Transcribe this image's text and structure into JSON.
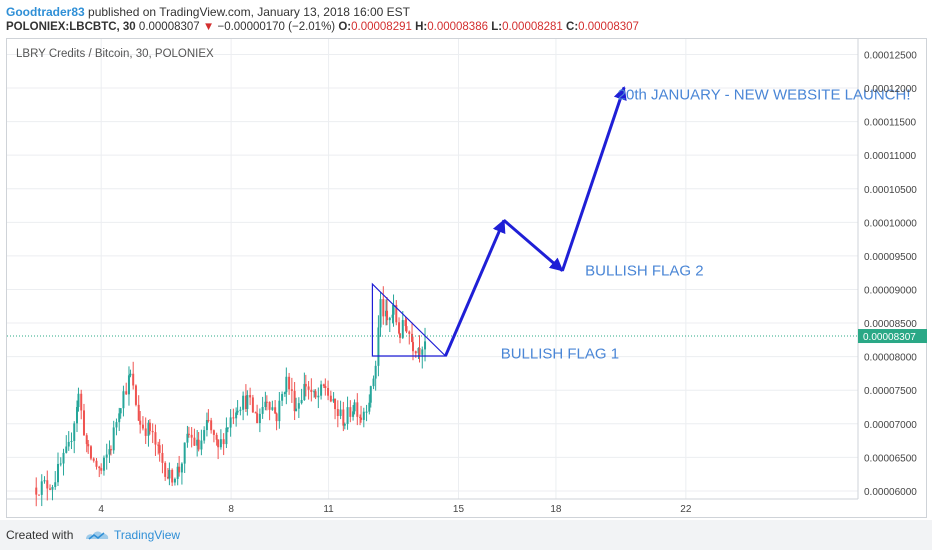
{
  "header": {
    "author": "Goodtrader83",
    "published": " published on TradingView.com, January 13, 2018 16:00 EST",
    "symbol": "POLONIEX:LBCBTC, 30",
    "last": "0.00008307",
    "change": "−0.00000170 (−2.01%)",
    "o_label": "O:",
    "o_val": "0.00008291",
    "h_label": "H:",
    "h_val": "0.00008386",
    "l_label": "L:",
    "l_val": "0.00008281",
    "c_label": "C:",
    "c_val": "0.00008307"
  },
  "footer": {
    "created_with": "Created with",
    "brand": "TradingView"
  },
  "chart_data": {
    "type": "candlestick",
    "title": "LBRY Credits / Bitcoin, 30, POLONIEX",
    "x": {
      "tick_labels": [
        "4",
        "8",
        "11",
        "15",
        "18",
        "22"
      ],
      "tick_values": [
        4,
        8,
        11,
        15,
        18,
        22
      ],
      "range": [
        1.1,
        27.3
      ]
    },
    "y": {
      "tick_labels": [
        "0.00012500",
        "0.00012000",
        "0.00011500",
        "0.00011000",
        "0.00010500",
        "0.00010000",
        "0.00009500",
        "0.00009000",
        "0.00008500",
        "0.00008000",
        "0.00007500",
        "0.00007000",
        "0.00006500",
        "0.00006000"
      ],
      "range": [
        5.88e-05,
        0.0001273
      ]
    },
    "last_price": "0.00008307",
    "last_price_value": 8.307e-05,
    "series": [
      {
        "name": "LBC/BTC",
        "points": [
          [
            2.0,
            6.05e-05
          ],
          [
            2.5,
            6.12e-05
          ],
          [
            3.0,
            6.62e-05
          ],
          [
            3.3,
            7.42e-05
          ],
          [
            3.6,
            6.55e-05
          ],
          [
            4.0,
            6.28e-05
          ],
          [
            4.3,
            6.68e-05
          ],
          [
            4.6,
            7.35e-05
          ],
          [
            4.9,
            7.7e-05
          ],
          [
            5.2,
            7e-05
          ],
          [
            5.5,
            6.9e-05
          ],
          [
            5.8,
            6.52e-05
          ],
          [
            6.1,
            6.2e-05
          ],
          [
            6.4,
            6.32e-05
          ],
          [
            6.7,
            6.83e-05
          ],
          [
            7.0,
            6.64e-05
          ],
          [
            7.3,
            7e-05
          ],
          [
            7.6,
            6.6e-05
          ],
          [
            7.9,
            7e-05
          ],
          [
            8.2,
            7.3e-05
          ],
          [
            8.5,
            7.35e-05
          ],
          [
            8.8,
            7.08e-05
          ],
          [
            9.1,
            7.4e-05
          ],
          [
            9.4,
            7.12e-05
          ],
          [
            9.7,
            7.65e-05
          ],
          [
            10.0,
            7.25e-05
          ],
          [
            10.3,
            7.6e-05
          ],
          [
            10.6,
            7.35e-05
          ],
          [
            10.9,
            7.55e-05
          ],
          [
            11.2,
            7.2e-05
          ],
          [
            11.5,
            7.05e-05
          ],
          [
            11.8,
            7.3e-05
          ],
          [
            12.0,
            7.12e-05
          ],
          [
            12.3,
            7.45e-05
          ],
          [
            12.45,
            7.9e-05
          ],
          [
            12.6,
            8.8e-05
          ],
          [
            12.8,
            8.5e-05
          ],
          [
            13.0,
            8.66e-05
          ],
          [
            13.2,
            8.35e-05
          ],
          [
            13.4,
            8.48e-05
          ],
          [
            13.6,
            8.2e-05
          ],
          [
            13.8,
            8.15e-05
          ],
          [
            14.0,
            8.31e-05
          ]
        ]
      }
    ],
    "drawings": {
      "flag1": {
        "apex": [
          12.35,
          9.08e-05
        ],
        "base_left": [
          12.35,
          8.01e-05
        ],
        "base_right": [
          14.6,
          8.01e-05
        ]
      },
      "projection": [
        [
          14.6,
          8.01e-05
        ],
        [
          16.4,
          0.0001003
        ],
        [
          18.2,
          9.28e-05
        ],
        [
          20.1,
          0.0001201
        ]
      ],
      "color": "#1f1fd6"
    },
    "annotations": [
      {
        "text": "BULLISH FLAG 1",
        "x": 16.3,
        "y": 8.05e-05
      },
      {
        "text": "BULLISH FLAG 2",
        "x": 18.9,
        "y": 9.28e-05
      },
      {
        "text": "20th JANUARY - NEW WEBSITE LAUNCH!",
        "x": 19.9,
        "y": 0.000119
      }
    ],
    "grid": true,
    "colors": {
      "up": "#26a69a",
      "down": "#ef5350",
      "annotation": "#4a86d6",
      "price_line": "#2aa886",
      "arrow": "#1f1fd6"
    }
  }
}
